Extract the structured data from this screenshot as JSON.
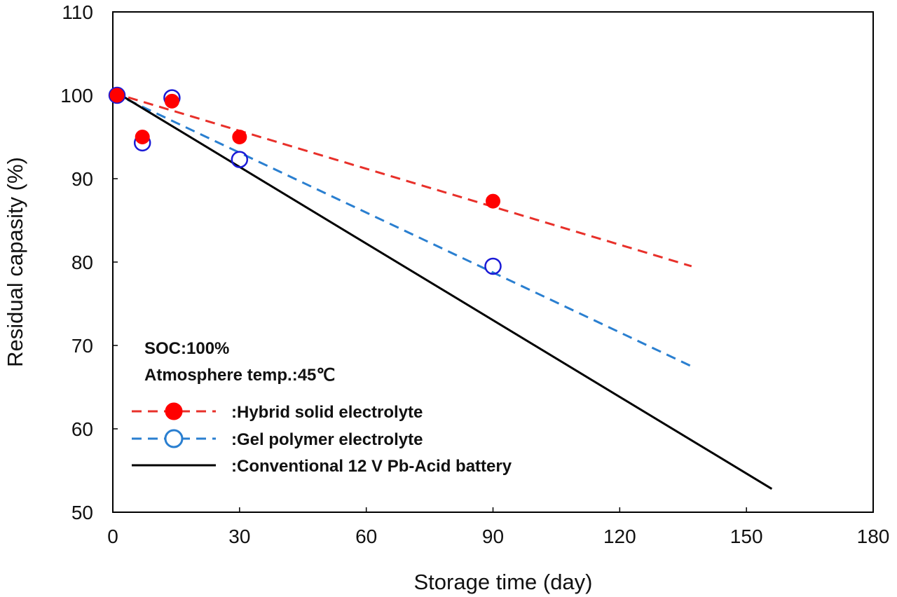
{
  "chart_data": {
    "type": "scatter",
    "title": "",
    "xlabel": "Storage time (day)",
    "ylabel": "Residual capasity (%)",
    "xlim": [
      0,
      180
    ],
    "ylim": [
      50,
      110
    ],
    "xticks": [
      0,
      30,
      60,
      90,
      120,
      150,
      180
    ],
    "yticks": [
      50,
      60,
      70,
      80,
      90,
      100,
      110
    ],
    "grid": false,
    "annotations": [
      "SOC:100%",
      "Atmosphere temp.:45℃"
    ],
    "legend_position": "bottom-left",
    "series": [
      {
        "name": ":Hybrid solid electrolyte",
        "marker": "filled-circle",
        "color": "#ff0000",
        "points": [
          [
            1,
            100
          ],
          [
            7,
            95
          ],
          [
            14,
            99.3
          ],
          [
            30,
            95
          ],
          [
            90,
            87.3
          ]
        ],
        "trend": {
          "style": "dashed",
          "color": "#e8302a",
          "x": [
            0,
            137
          ],
          "y": [
            100.3,
            79.5
          ]
        }
      },
      {
        "name": ":Gel polymer electrolyte",
        "marker": "open-circle",
        "color": "#1a1ad6",
        "points": [
          [
            1,
            100
          ],
          [
            7,
            94.3
          ],
          [
            14,
            99.7
          ],
          [
            30,
            92.3
          ],
          [
            90,
            79.5
          ]
        ],
        "trend": {
          "style": "dashed",
          "color": "#2a7fd0",
          "x": [
            0,
            137
          ],
          "y": [
            100.3,
            67.5
          ]
        }
      },
      {
        "name": ":Conventional 12 V Pb-Acid battery",
        "marker": "none",
        "color": "#000000",
        "points": [],
        "trend": {
          "style": "solid",
          "color": "#000000",
          "x": [
            1,
            156
          ],
          "y": [
            100.3,
            52.8
          ]
        }
      }
    ]
  }
}
